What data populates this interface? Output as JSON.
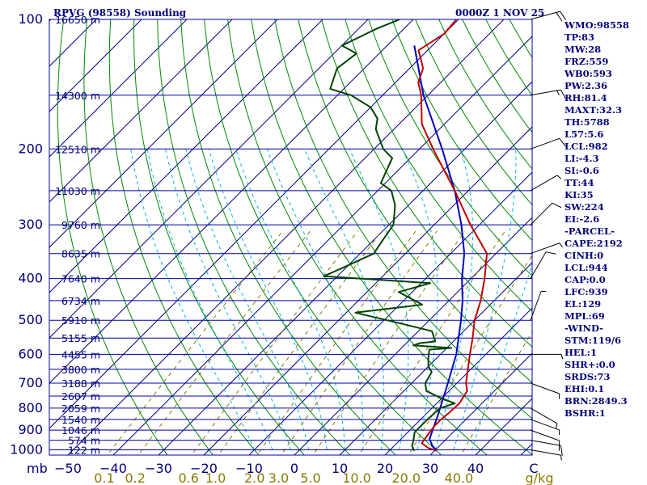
{
  "header": {
    "station": "RPVG (98558) Sounding",
    "time": "0000Z  1 NOV 25"
  },
  "indices": [
    "WMO:98558",
    "TP:83",
    "MW:28",
    "FRZ:559",
    "WB0:593",
    "PW:2.36",
    "RH:81.4",
    "MAXT:32.3",
    "TH:5788",
    "L57:5.6",
    "LCL:982",
    "LI:-4.3",
    "SI:-0.6",
    "TT:44",
    "KI:35",
    "SW:224",
    "EI:-2.6",
    "-PARCEL-",
    "CAPE:2192",
    "CINH:0",
    "LCL:944",
    "CAP:0.0",
    "LFC:939",
    "EL:129",
    "MPL:69",
    "-WIND-",
    "STM:119/6",
    "HEL:1",
    "SHR+:0.0",
    "SRDS:73",
    "EHI:0.1",
    "BRN:2849.3",
    "BSHR:1"
  ],
  "colors": {
    "isobar": "#0000a0",
    "isotherm": "#00008a",
    "dry_adiabat": "#008a00",
    "moist_adiabat": "#00b4e6",
    "mixing_ratio": "#8a7a00",
    "temperature": "#c00000",
    "dewpoint": "#004400",
    "parcel": "#0000c0",
    "text": "#00007a"
  },
  "chart_data": {
    "type": "line",
    "title": "RPVG (98558) Sounding",
    "pressure_unit": "mb",
    "temperature_unit": "C",
    "mixing_ratio_unit": "g/kg",
    "pressure_levels": [
      100,
      200,
      300,
      400,
      500,
      600,
      700,
      800,
      900,
      1000
    ],
    "pressure_ticks_labeled": [
      "100",
      "200",
      "300",
      "400",
      "500",
      "600",
      "700",
      "800",
      "900",
      "1000"
    ],
    "temperature_ticks": [
      -50,
      -40,
      -30,
      -20,
      -10,
      0,
      10,
      20,
      30,
      40
    ],
    "temperature_tick_labels": [
      "−50",
      "−40",
      "−30",
      "−20",
      "−10",
      "0",
      "10",
      "20",
      "30",
      "40"
    ],
    "temperature_unit_label": "C",
    "pressure_unit_label": "mb",
    "x_range": [
      -50,
      50
    ],
    "p_range": [
      100,
      1050
    ],
    "mixing_ratio_lines": [
      0.1,
      0.2,
      0.6,
      1.0,
      2.0,
      3.0,
      5.0,
      10.0,
      20.0,
      40.0
    ],
    "mixing_ratio_labels": [
      "0.1",
      "0.2",
      "0.6",
      "1.0",
      "2.0",
      "3.0",
      "5.0",
      "10.0",
      "20.0",
      "40.0"
    ],
    "mixing_ratio_unit_label": "g/kg",
    "height_labels": [
      {
        "p": 100,
        "label": "16650 m"
      },
      {
        "p": 150,
        "label": "14300 m"
      },
      {
        "p": 200,
        "label": "12510 m"
      },
      {
        "p": 250,
        "label": "11030 m"
      },
      {
        "p": 300,
        "label": "9760 m"
      },
      {
        "p": 350,
        "label": "8635 m"
      },
      {
        "p": 400,
        "label": "7640 m"
      },
      {
        "p": 450,
        "label": "6734 m"
      },
      {
        "p": 500,
        "label": "5910 m"
      },
      {
        "p": 550,
        "label": "5155 m"
      },
      {
        "p": 600,
        "label": "4455 m"
      },
      {
        "p": 650,
        "label": "3800 m"
      },
      {
        "p": 700,
        "label": "3188 m"
      },
      {
        "p": 750,
        "label": "2607 m"
      },
      {
        "p": 800,
        "label": "2059 m"
      },
      {
        "p": 850,
        "label": "1540 m"
      },
      {
        "p": 900,
        "label": "1046 m"
      },
      {
        "p": 950,
        "label": "574 m"
      },
      {
        "p": 1000,
        "label": "122 m"
      }
    ],
    "temperature": [
      {
        "p": 1005,
        "t": 30.5
      },
      {
        "p": 990,
        "t": 28.0
      },
      {
        "p": 965,
        "t": 25.5
      },
      {
        "p": 925,
        "t": 25.0
      },
      {
        "p": 880,
        "t": 24.5
      },
      {
        "p": 850,
        "t": 24.5
      },
      {
        "p": 820,
        "t": 24.8
      },
      {
        "p": 780,
        "t": 25.0
      },
      {
        "p": 730,
        "t": 24.0
      },
      {
        "p": 700,
        "t": 22.0
      },
      {
        "p": 600,
        "t": 16.5
      },
      {
        "p": 550,
        "t": 13.5
      },
      {
        "p": 500,
        "t": 10.0
      },
      {
        "p": 450,
        "t": 7.0
      },
      {
        "p": 400,
        "t": 3.0
      },
      {
        "p": 350,
        "t": -2.0
      },
      {
        "p": 300,
        "t": -12.0
      },
      {
        "p": 250,
        "t": -23.0
      },
      {
        "p": 200,
        "t": -37.0
      },
      {
        "p": 175,
        "t": -45.0
      },
      {
        "p": 150,
        "t": -51.5
      },
      {
        "p": 140,
        "t": -55.0
      },
      {
        "p": 130,
        "t": -57.0
      },
      {
        "p": 125,
        "t": -59.0
      },
      {
        "p": 118,
        "t": -62.0
      },
      {
        "p": 108,
        "t": -60.0
      },
      {
        "p": 100,
        "t": -60.5
      }
    ],
    "dewpoint": [
      {
        "p": 1005,
        "t": 25.5
      },
      {
        "p": 980,
        "t": 24.0
      },
      {
        "p": 950,
        "t": 23.0
      },
      {
        "p": 910,
        "t": 21.5
      },
      {
        "p": 850,
        "t": 21.5
      },
      {
        "p": 800,
        "t": 21.8
      },
      {
        "p": 780,
        "t": 24.0
      },
      {
        "p": 760,
        "t": 20.0
      },
      {
        "p": 730,
        "t": 15.0
      },
      {
        "p": 700,
        "t": 13.0
      },
      {
        "p": 660,
        "t": 12.0
      },
      {
        "p": 640,
        "t": 10.0
      },
      {
        "p": 610,
        "t": 8.0
      },
      {
        "p": 585,
        "t": 6.5
      },
      {
        "p": 580,
        "t": 11.0
      },
      {
        "p": 572,
        "t": 2.0
      },
      {
        "p": 565,
        "t": 3.0
      },
      {
        "p": 560,
        "t": 6.0
      },
      {
        "p": 530,
        "t": 3.0
      },
      {
        "p": 510,
        "t": -5.0
      },
      {
        "p": 480,
        "t": -18.0
      },
      {
        "p": 460,
        "t": -5.0
      },
      {
        "p": 430,
        "t": -13.0
      },
      {
        "p": 410,
        "t": -8.0
      },
      {
        "p": 395,
        "t": -33.0
      },
      {
        "p": 380,
        "t": -31.0
      },
      {
        "p": 350,
        "t": -27.0
      },
      {
        "p": 325,
        "t": -28.0
      },
      {
        "p": 300,
        "t": -29.0
      },
      {
        "p": 270,
        "t": -33.0
      },
      {
        "p": 250,
        "t": -37.0
      },
      {
        "p": 240,
        "t": -41.0
      },
      {
        "p": 210,
        "t": -44.0
      },
      {
        "p": 200,
        "t": -48.0
      },
      {
        "p": 180,
        "t": -54.0
      },
      {
        "p": 170,
        "t": -56.0
      },
      {
        "p": 160,
        "t": -60.0
      },
      {
        "p": 150,
        "t": -67.0
      },
      {
        "p": 145,
        "t": -73.0
      },
      {
        "p": 130,
        "t": -76.0
      },
      {
        "p": 120,
        "t": -75.0
      },
      {
        "p": 115,
        "t": -80.0
      },
      {
        "p": 110,
        "t": -78.0
      },
      {
        "p": 105,
        "t": -76.0
      },
      {
        "p": 100,
        "t": -73.0
      }
    ],
    "parcel": [
      {
        "p": 1005,
        "t": 30.5
      },
      {
        "p": 980,
        "t": 28.5
      },
      {
        "p": 944,
        "t": 26.3
      },
      {
        "p": 900,
        "t": 25.0
      },
      {
        "p": 850,
        "t": 23.5
      },
      {
        "p": 800,
        "t": 21.8
      },
      {
        "p": 700,
        "t": 18.0
      },
      {
        "p": 600,
        "t": 13.5
      },
      {
        "p": 500,
        "t": 7.0
      },
      {
        "p": 450,
        "t": 3.0
      },
      {
        "p": 400,
        "t": -2.0
      },
      {
        "p": 350,
        "t": -7.0
      },
      {
        "p": 300,
        "t": -14.0
      },
      {
        "p": 250,
        "t": -23.0
      },
      {
        "p": 200,
        "t": -35.0
      },
      {
        "p": 150,
        "t": -51.0
      },
      {
        "p": 130,
        "t": -58.0
      },
      {
        "p": 115,
        "t": -64.0
      }
    ],
    "wind_barbs": [
      {
        "p": 100,
        "dir": 75,
        "spd": 20
      },
      {
        "p": 150,
        "dir": 80,
        "spd": 15
      },
      {
        "p": 200,
        "dir": 70,
        "spd": 10
      },
      {
        "p": 250,
        "dir": 60,
        "spd": 5
      },
      {
        "p": 300,
        "dir": 45,
        "spd": 10
      },
      {
        "p": 350,
        "dir": 70,
        "spd": 5
      },
      {
        "p": 400,
        "dir": 30,
        "spd": 10
      },
      {
        "p": 500,
        "dir": 20,
        "spd": 5
      },
      {
        "p": 600,
        "dir": 90,
        "spd": 5
      },
      {
        "p": 700,
        "dir": 110,
        "spd": 5
      },
      {
        "p": 800,
        "dir": 120,
        "spd": 5
      },
      {
        "p": 850,
        "dir": 110,
        "spd": 5
      },
      {
        "p": 900,
        "dir": 110,
        "spd": 10
      },
      {
        "p": 950,
        "dir": 100,
        "spd": 10
      },
      {
        "p": 1000,
        "dir": 100,
        "spd": 5
      }
    ]
  }
}
